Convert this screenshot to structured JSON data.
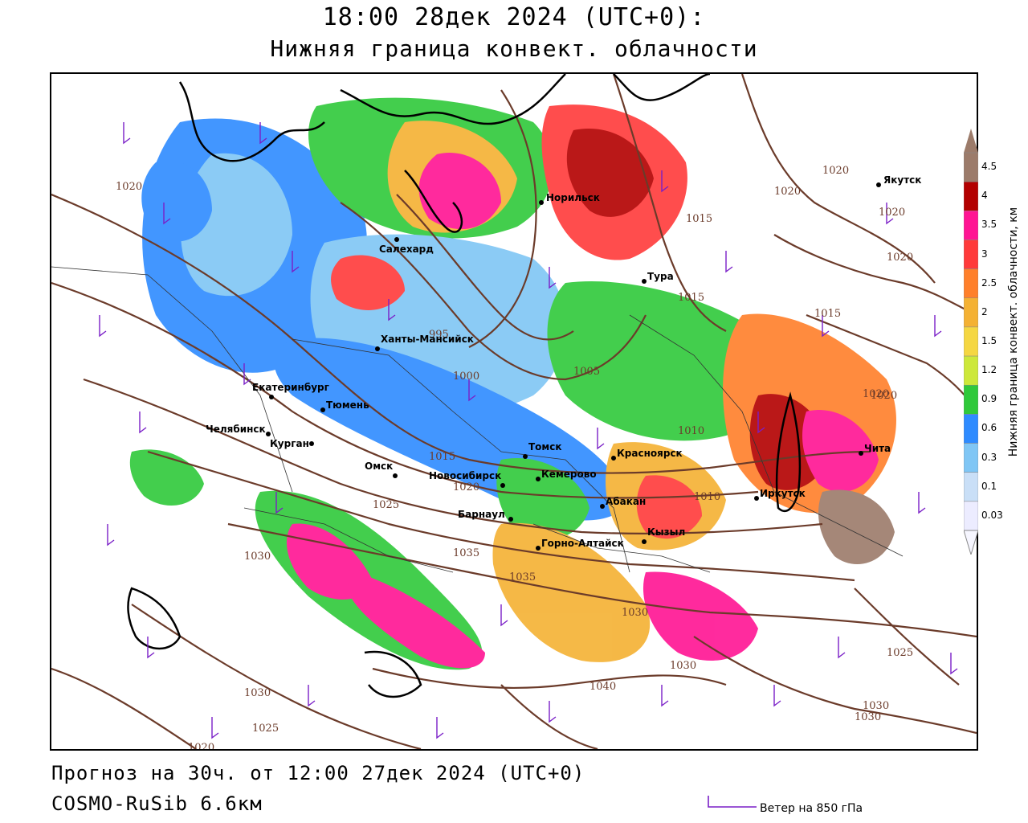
{
  "header": {
    "title_line1": "18:00 28дек 2024 (UTC+0):",
    "title_line2": "Нижняя граница конвект. облачности"
  },
  "footer": {
    "forecast_line": "Прогноз на 30ч. от 12:00 27дек 2024 (UTC+0)",
    "model_line": "COSMO-RuSib 6.6км"
  },
  "legend": {
    "title": "Нижняя граница конвект. облачности, км",
    "ticks": [
      "4.5",
      "4",
      "3.5",
      "3",
      "2.5",
      "2",
      "1.5",
      "1.2",
      "0.9",
      "0.6",
      "0.3",
      "0.1",
      "0.03"
    ],
    "colors": [
      "#9c7b6a",
      "#b30000",
      "#ff1493",
      "#ff3a3a",
      "#ff7f2a",
      "#f4b133",
      "#f5d742",
      "#cde83a",
      "#2fc93a",
      "#2e8bff",
      "#7fc6f5",
      "#c9dff7",
      "#ececff"
    ]
  },
  "wind_legend": {
    "label": "Ветер на 850 гПа",
    "color": "#7a1fc7"
  },
  "cities": [
    {
      "name": "Якутск"
    },
    {
      "name": "Норильск"
    },
    {
      "name": "Салехард"
    },
    {
      "name": "Тура"
    },
    {
      "name": "Ханты-Мансийск"
    },
    {
      "name": "Екатеринбург"
    },
    {
      "name": "Тюмень"
    },
    {
      "name": "Челябинск"
    },
    {
      "name": "Курган"
    },
    {
      "name": "Омск"
    },
    {
      "name": "Новосибирск"
    },
    {
      "name": "Томск"
    },
    {
      "name": "Кемерово"
    },
    {
      "name": "Красноярск"
    },
    {
      "name": "Барнаул"
    },
    {
      "name": "Абакан"
    },
    {
      "name": "Кызыл"
    },
    {
      "name": "Горно-Алтайск"
    },
    {
      "name": "Иркутск"
    },
    {
      "name": "Чита"
    }
  ],
  "isobar_labels": [
    "1020",
    "1020",
    "1020",
    "1020",
    "1020",
    "1020",
    "1015",
    "1015",
    "1015",
    "995",
    "1000",
    "1005",
    "1010",
    "1015",
    "1020",
    "1025",
    "1030",
    "1035",
    "1030",
    "1035",
    "1040",
    "1030",
    "1030",
    "1025",
    "1030",
    "1030",
    "1025",
    "1020",
    "1010",
    "1020"
  ]
}
